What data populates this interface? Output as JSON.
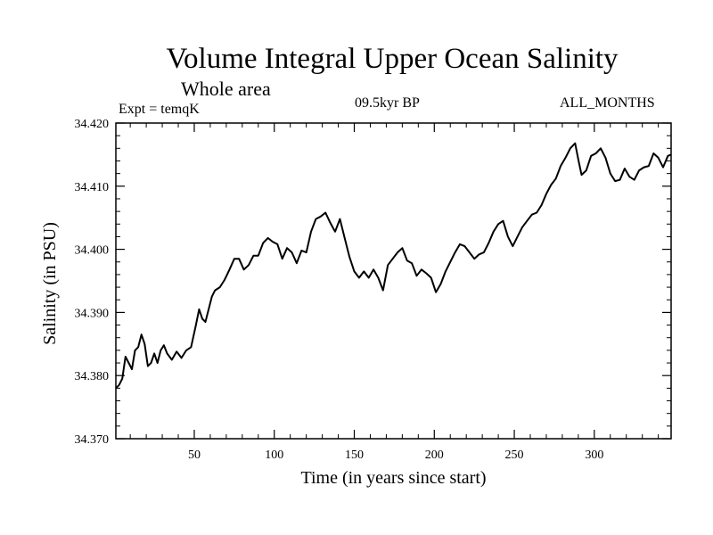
{
  "chart_data": {
    "type": "line",
    "title": "Volume Integral Upper Ocean Salinity",
    "subtitle": "Whole area",
    "experiment": "Expt = temqK",
    "period": "09.5kyr BP",
    "months": "ALL_MONTHS",
    "xlabel": "Time (in years since start)",
    "ylabel": "Salinity (in PSU)",
    "xlim": [
      1,
      348
    ],
    "ylim": [
      34.37,
      34.42
    ],
    "xticks": [
      50,
      100,
      150,
      200,
      250,
      300
    ],
    "yticks": [
      "34.370",
      "34.380",
      "34.390",
      "34.400",
      "34.410",
      "34.420"
    ],
    "grid": false,
    "series": [
      {
        "name": "Salinity",
        "x": [
          1,
          3,
          5,
          7,
          9,
          11,
          13,
          15,
          17,
          19,
          21,
          23,
          25,
          27,
          29,
          31,
          33,
          36,
          39,
          42,
          45,
          48,
          51,
          53,
          55,
          57,
          59,
          61,
          63,
          66,
          69,
          72,
          75,
          78,
          81,
          84,
          87,
          90,
          93,
          96,
          99,
          102,
          105,
          108,
          111,
          114,
          117,
          120,
          123,
          126,
          129,
          132,
          135,
          138,
          141,
          144,
          147,
          150,
          153,
          156,
          159,
          162,
          165,
          168,
          171,
          174,
          177,
          180,
          183,
          186,
          189,
          192,
          195,
          198,
          201,
          204,
          207,
          210,
          213,
          216,
          219,
          222,
          225,
          228,
          231,
          234,
          237,
          240,
          243,
          246,
          249,
          252,
          255,
          258,
          261,
          264,
          267,
          270,
          273,
          276,
          279,
          282,
          285,
          288,
          290,
          292,
          295,
          298,
          301,
          304,
          307,
          310,
          313,
          316,
          319,
          322,
          325,
          328,
          331,
          334,
          337,
          340,
          343,
          346,
          348
        ],
        "values": [
          34.378,
          34.3785,
          34.3795,
          34.383,
          34.382,
          34.381,
          34.384,
          34.3845,
          34.3865,
          34.385,
          34.3815,
          34.382,
          34.3835,
          34.382,
          34.384,
          34.3848,
          34.3835,
          34.3825,
          34.3838,
          34.3828,
          34.384,
          34.3845,
          34.388,
          34.3905,
          34.389,
          34.3885,
          34.3905,
          34.3925,
          34.3935,
          34.394,
          34.3952,
          34.3968,
          34.3985,
          34.3985,
          34.3968,
          34.3975,
          34.399,
          34.399,
          34.401,
          34.4018,
          34.4012,
          34.4008,
          34.3985,
          34.4002,
          34.3995,
          34.3978,
          34.3998,
          34.3995,
          34.4028,
          34.4048,
          34.4052,
          34.4058,
          34.4042,
          34.4028,
          34.4048,
          34.4018,
          34.3988,
          34.3965,
          34.3955,
          34.3965,
          34.3955,
          34.3968,
          34.3955,
          34.3935,
          34.3975,
          34.3985,
          34.3995,
          34.4002,
          34.3982,
          34.3978,
          34.3958,
          34.3968,
          34.3962,
          34.3955,
          34.3932,
          34.3945,
          34.3965,
          34.398,
          34.3995,
          34.4008,
          34.4005,
          34.3995,
          34.3985,
          34.3992,
          34.3995,
          34.401,
          34.4028,
          34.404,
          34.4045,
          34.402,
          34.4005,
          34.402,
          34.4035,
          34.4045,
          34.4055,
          34.4058,
          34.407,
          34.4088,
          34.4102,
          34.4112,
          34.4132,
          34.4145,
          34.416,
          34.4168,
          34.4142,
          34.4118,
          34.4125,
          34.4148,
          34.4152,
          34.416,
          34.4145,
          34.412,
          34.4108,
          34.411,
          34.4128,
          34.4115,
          34.411,
          34.4125,
          34.413,
          34.4132,
          34.4152,
          34.4145,
          34.413,
          34.4148,
          34.415
        ]
      }
    ]
  }
}
